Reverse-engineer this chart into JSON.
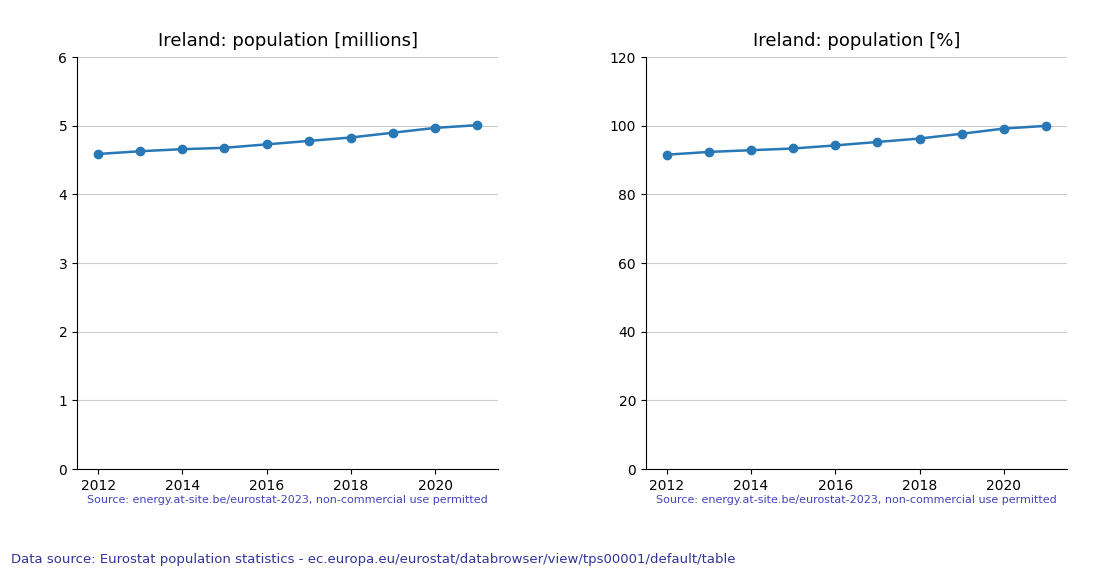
{
  "years": [
    2012,
    2013,
    2014,
    2015,
    2016,
    2017,
    2018,
    2019,
    2020,
    2021
  ],
  "population_millions": [
    4.59,
    4.63,
    4.66,
    4.68,
    4.73,
    4.78,
    4.83,
    4.9,
    4.97,
    5.01
  ],
  "population_percent": [
    91.6,
    92.4,
    92.9,
    93.4,
    94.3,
    95.3,
    96.3,
    97.7,
    99.2,
    100.0
  ],
  "title_left": "Ireland: population [millions]",
  "title_right": "Ireland: population [%]",
  "ylim_left": [
    0,
    6
  ],
  "ylim_right": [
    0,
    120
  ],
  "yticks_left": [
    0,
    1,
    2,
    3,
    4,
    5,
    6
  ],
  "yticks_right": [
    0,
    20,
    40,
    60,
    80,
    100,
    120
  ],
  "line_color": "#2878b5",
  "marker": "o",
  "marker_size": 6,
  "source_text": "Source: energy.at-site.be/eurostat-2023, non-commercial use permitted",
  "source_color": "#4444bb",
  "footer_text": "Data source: Eurostat population statistics - ec.europa.eu/eurostat/databrowser/view/tps00001/default/table",
  "footer_color": "#333399",
  "background_color": "#ffffff",
  "grid_color": "#cccccc",
  "xticks": [
    2012,
    2014,
    2016,
    2018,
    2020
  ]
}
